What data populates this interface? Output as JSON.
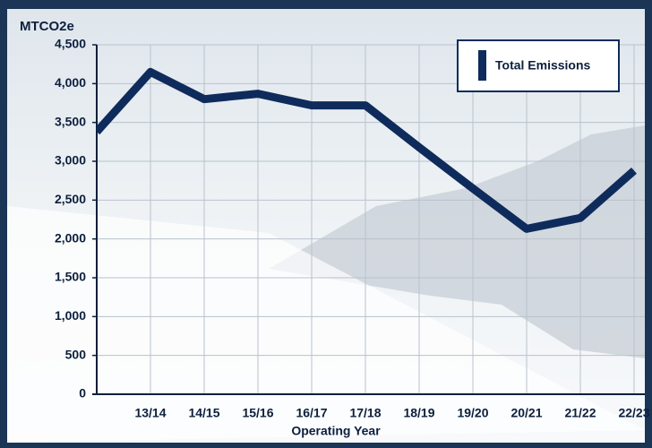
{
  "chart_data": {
    "type": "line",
    "y_axis_label": "MTCO2e",
    "x_axis_label": "Operating Year",
    "categories": [
      null,
      "13/14",
      "14/15",
      "15/16",
      "16/17",
      "17/18",
      "18/19",
      "19/20",
      "20/21",
      "21/22",
      "22/23"
    ],
    "series": [
      {
        "name": "Total Emissions",
        "color": "#0e2b5c",
        "values": [
          3380,
          4150,
          3800,
          3870,
          3720,
          3720,
          3180,
          2650,
          2130,
          2270,
          2880
        ]
      }
    ],
    "ylim": [
      0,
      4500
    ],
    "yticks": [
      0,
      500,
      {
        "value": 1000,
        "label": "1,000"
      },
      {
        "value": 1500,
        "label": "1,500"
      },
      {
        "value": 2000,
        "label": "2,000"
      },
      {
        "value": 2500,
        "label": "2,500"
      },
      {
        "value": 3000,
        "label": "3,000"
      },
      {
        "value": 3500,
        "label": "3,500"
      },
      {
        "value": 4000,
        "label": "4,000"
      },
      {
        "value": 4500,
        "label": "4,500"
      }
    ],
    "grid": true,
    "legend": "top-right"
  }
}
